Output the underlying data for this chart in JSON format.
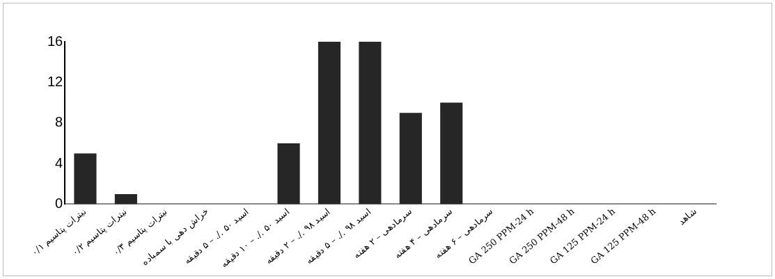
{
  "chart_data": {
    "type": "bar",
    "categories": [
      "نیترات پتاسیم ۰/۱",
      "نیترات پتاسیم ۰/۲",
      "نیترات پتاسیم ۰/۳",
      "خراش دهی با سمباده",
      "اسید ۵۰ ./. – ۵ دقیقه",
      "اسید ۵۰ ./. – ۱۰ دقیقه",
      "اسید ۹۸ ./. – ۲ دقیقه",
      "اسید ۹۸ ./. – ۵ دقیقه",
      "سرمادهی – ۲ هفته",
      "سرمادهی – ۴ هفته",
      "سرمادهی – ۶ هفته",
      "GA 250 PPM-24 h",
      "GA 250 PPM-48 h",
      "GA 125 PPM-24 h",
      "GA 125 PPM-48 h",
      "شاهد"
    ],
    "values": [
      5,
      1,
      0,
      0,
      0,
      6,
      16,
      16,
      9,
      10,
      0,
      0,
      0,
      0,
      0,
      0
    ],
    "color": "#262626",
    "ylim": [
      0,
      16
    ],
    "yticks": [
      0,
      4,
      8,
      12,
      16
    ],
    "grid": false,
    "legend": false
  }
}
